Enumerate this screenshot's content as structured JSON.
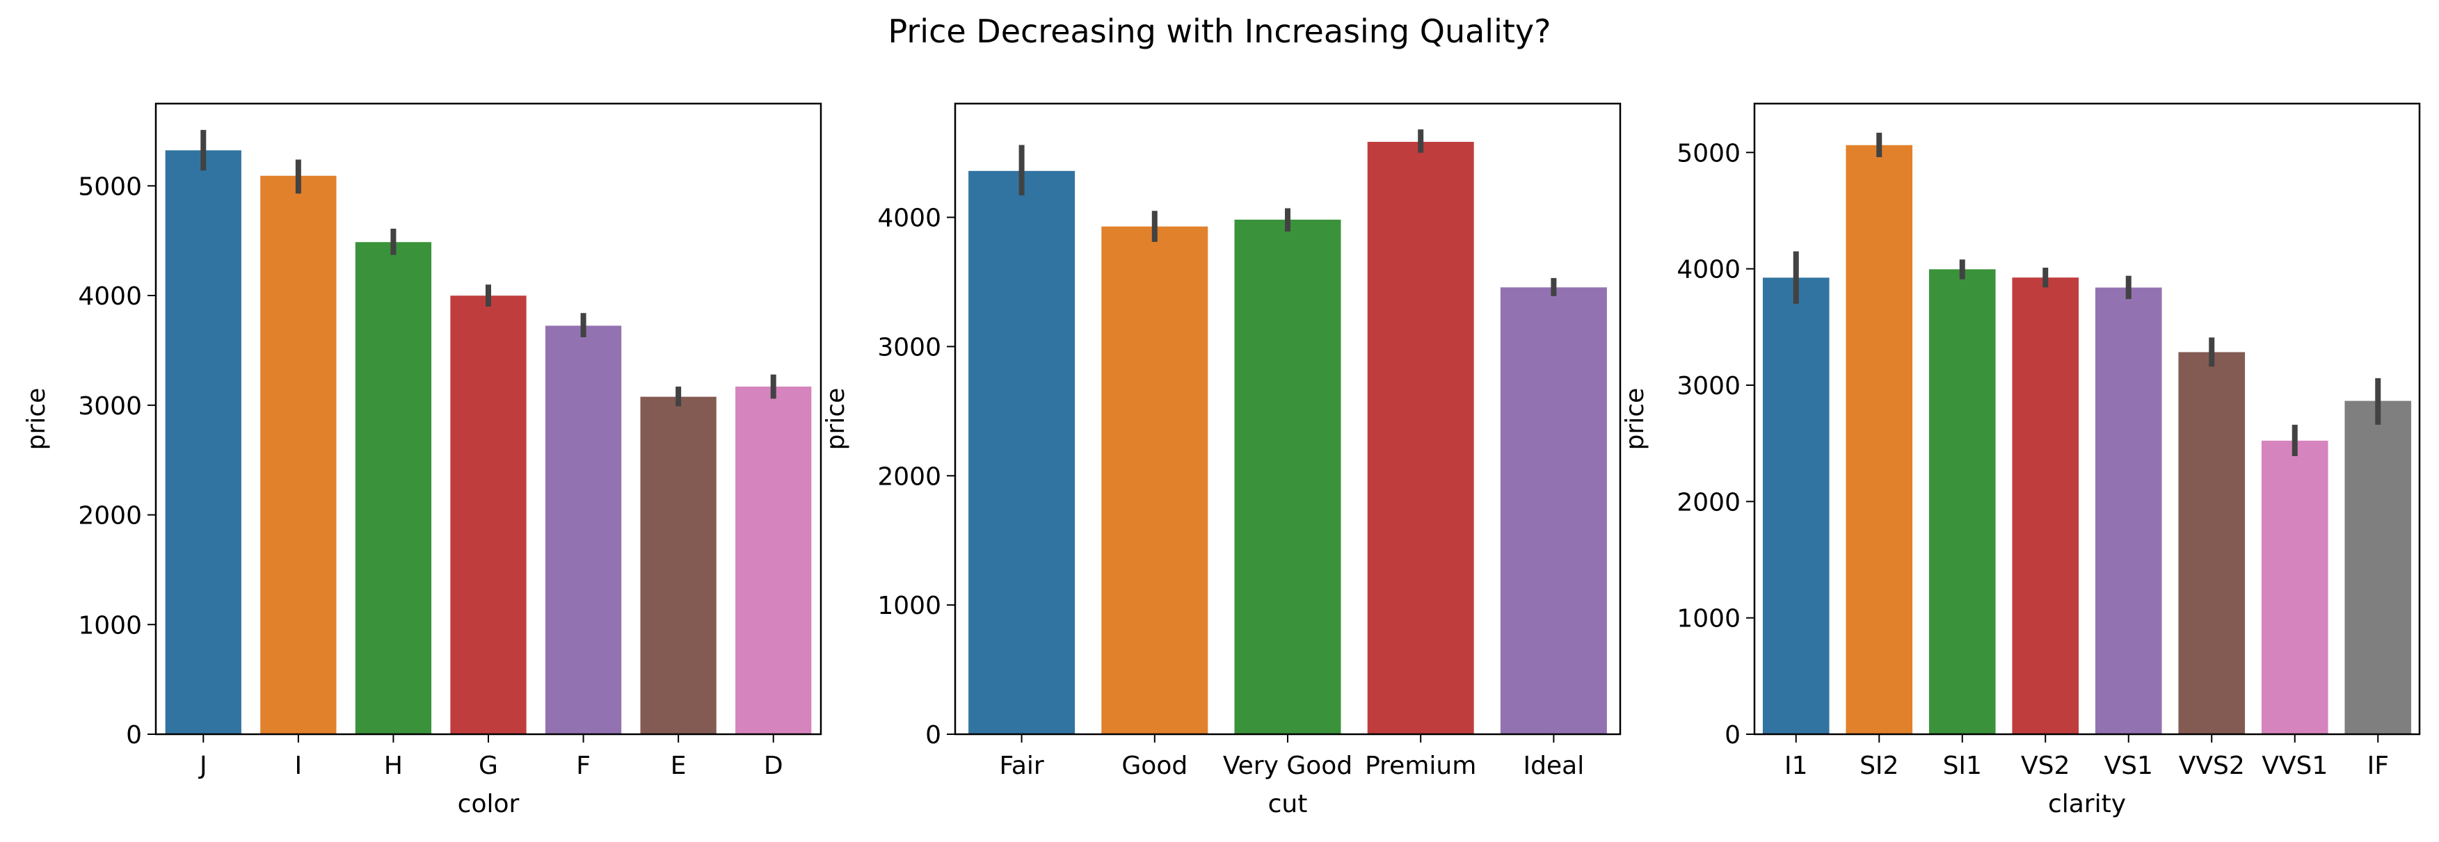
{
  "figure": {
    "title": "Price Decreasing with Increasing Quality?"
  },
  "chart_data": [
    {
      "type": "bar",
      "xlabel": "color",
      "ylabel": "price",
      "ylim": [
        0,
        5750
      ],
      "yticks": [
        0,
        1000,
        2000,
        3000,
        4000,
        5000
      ],
      "categories": [
        "J",
        "I",
        "H",
        "G",
        "F",
        "E",
        "D"
      ],
      "values": [
        5324,
        5092,
        4487,
        3999,
        3725,
        3077,
        3170
      ],
      "err_low": [
        5140,
        4930,
        4370,
        3900,
        3620,
        2990,
        3060
      ],
      "err_high": [
        5510,
        5240,
        4610,
        4100,
        3840,
        3170,
        3280
      ],
      "colors": [
        "#3274a1",
        "#e1812c",
        "#3a923a",
        "#c03d3e",
        "#9372b2",
        "#845b53",
        "#d684bd"
      ]
    },
    {
      "type": "bar",
      "xlabel": "cut",
      "ylabel": "price",
      "ylim": [
        0,
        4880
      ],
      "yticks": [
        0,
        1000,
        2000,
        3000,
        4000
      ],
      "categories": [
        "Fair",
        "Good",
        "Very Good",
        "Premium",
        "Ideal"
      ],
      "values": [
        4359,
        3929,
        3982,
        4584,
        3458
      ],
      "err_low": [
        4170,
        3810,
        3890,
        4500,
        3390
      ],
      "err_high": [
        4560,
        4050,
        4070,
        4680,
        3530
      ],
      "colors": [
        "#3274a1",
        "#e1812c",
        "#3a923a",
        "#c03d3e",
        "#9372b2"
      ]
    },
    {
      "type": "bar",
      "xlabel": "clarity",
      "ylabel": "price",
      "ylim": [
        0,
        5420
      ],
      "yticks": [
        0,
        1000,
        2000,
        3000,
        4000,
        5000
      ],
      "categories": [
        "I1",
        "SI2",
        "SI1",
        "VS2",
        "VS1",
        "VVS2",
        "VVS1",
        "IF"
      ],
      "values": [
        3924,
        5063,
        3996,
        3925,
        3839,
        3284,
        2523,
        2865
      ],
      "err_low": [
        3700,
        4960,
        3910,
        3840,
        3740,
        3160,
        2390,
        2660
      ],
      "err_high": [
        4150,
        5170,
        4080,
        4010,
        3940,
        3410,
        2660,
        3060
      ],
      "colors": [
        "#3274a1",
        "#e1812c",
        "#3a923a",
        "#c03d3e",
        "#9372b2",
        "#845b53",
        "#d684bd",
        "#7f7f7f"
      ]
    }
  ]
}
